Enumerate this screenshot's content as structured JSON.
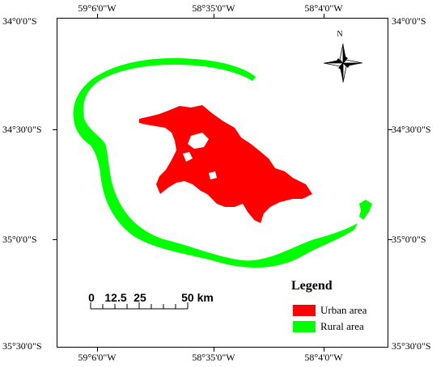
{
  "longitude_labels": [
    "59°6'0\"W",
    "58°35'0\"W",
    "58°4'0\"W"
  ],
  "latitude_labels": [
    "34°0'0\"S",
    "34°30'0\"S",
    "35°0'0\"S",
    "35°30'0\"S"
  ],
  "north_arrow": {
    "label": "N",
    "icon": "compass-rose-icon"
  },
  "scale_bar": {
    "labels": [
      "0",
      "12.5",
      "25",
      "50 km"
    ]
  },
  "legend": {
    "title": "Legend",
    "items": [
      {
        "label": "Urban area",
        "color": "#ff0000"
      },
      {
        "label": "Rural area",
        "color": "#00ff00"
      }
    ]
  }
}
